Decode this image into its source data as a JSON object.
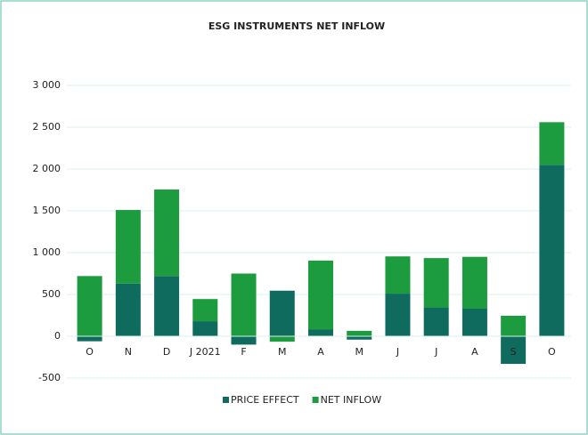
{
  "chart_data": {
    "type": "stacked_bar",
    "title": "ESG INSTRUMENTS NET INFLOW",
    "categories": [
      "O",
      "N",
      "D",
      "J 2021",
      "F",
      "M",
      "A",
      "M",
      "J",
      "J",
      "A",
      "S",
      "O"
    ],
    "series": [
      {
        "name": "PRICE EFFECT",
        "color": "#0e6b5e",
        "values": [
          -60,
          630,
          720,
          180,
          -100,
          545,
          80,
          -40,
          510,
          345,
          330,
          -330,
          2050
        ]
      },
      {
        "name": "NET INFLOW",
        "color": "#1c9b3f",
        "values": [
          720,
          880,
          1035,
          265,
          750,
          -65,
          825,
          65,
          445,
          590,
          620,
          245,
          510
        ]
      }
    ],
    "ylim": [
      -500,
      3000
    ],
    "yticks": [
      {
        "value": -500,
        "label": "-500"
      },
      0,
      500,
      {
        "value": 1000,
        "label": "1 000"
      },
      {
        "value": 1500,
        "label": "1 500"
      },
      {
        "value": 2000,
        "label": "2 000"
      },
      {
        "value": 2500,
        "label": "2 500"
      },
      {
        "value": 3000,
        "label": "3 000"
      }
    ],
    "grid": true,
    "legend": "bottom"
  }
}
